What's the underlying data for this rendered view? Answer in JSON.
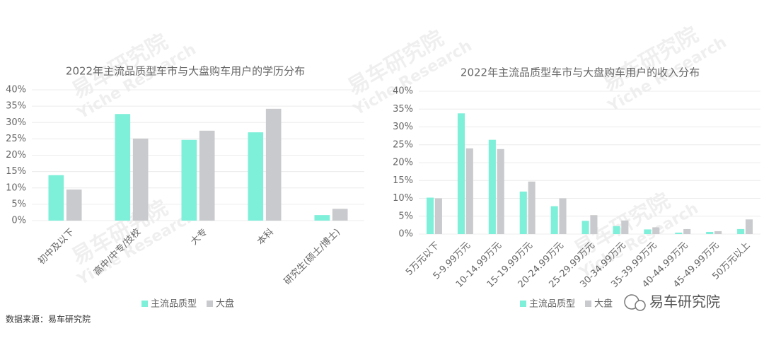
{
  "chart_data": [
    {
      "type": "bar",
      "title": "2022年主流品质型车市与大盘购车用户的学历分布",
      "categories": [
        "初中及以下",
        "高中/中专/技校",
        "大专",
        "本科",
        "研究生(硕士/博士)"
      ],
      "series": [
        {
          "name": "主流品质型",
          "color": "#7eefd9",
          "values": [
            13.9,
            32.6,
            24.7,
            27,
            1.7
          ]
        },
        {
          "name": "大盘",
          "color": "#c9cacd",
          "values": [
            9.5,
            25.1,
            27.5,
            34.2,
            3.6
          ]
        }
      ],
      "ylim": [
        0,
        40
      ],
      "yticks": [
        {
          "value": 0,
          "label": "0%"
        },
        {
          "value": 5,
          "label": "5%"
        },
        {
          "value": 10,
          "label": "10%"
        },
        {
          "value": 15,
          "label": "15%"
        },
        {
          "value": 20,
          "label": "20%"
        },
        {
          "value": 25,
          "label": "25%"
        },
        {
          "value": 30,
          "label": "30%"
        },
        {
          "value": 35,
          "label": "35%"
        },
        {
          "value": 40,
          "label": "40%"
        }
      ],
      "grid": true,
      "legend": "bottom"
    },
    {
      "type": "bar",
      "title": "2022年主流品质型车市与大盘购车用户的收入分布",
      "categories": [
        "5万元以下",
        "5-9.99万元",
        "10-14.99万元",
        "15-19.99万元",
        "20-24.99万元",
        "25-29.99万元",
        "30-34.99万元",
        "35-39.99万元",
        "40-44.99万元",
        "45-49.99万元",
        "50万元以上"
      ],
      "series": [
        {
          "name": "主流品质型",
          "color": "#7eefd9",
          "values": [
            10.2,
            33.8,
            26.4,
            11.9,
            7.8,
            3.7,
            2.2,
            1.3,
            0.4,
            0.6,
            1.4
          ]
        },
        {
          "name": "大盘",
          "color": "#c9cacd",
          "values": [
            10,
            24,
            23.8,
            14.7,
            10,
            5.3,
            3.8,
            1.9,
            1.4,
            0.8,
            4.1
          ]
        }
      ],
      "ylim": [
        0,
        40
      ],
      "yticks": [
        {
          "value": 0,
          "label": "0%"
        },
        {
          "value": 5,
          "label": "5%"
        },
        {
          "value": 10,
          "label": "10%"
        },
        {
          "value": 15,
          "label": "15%"
        },
        {
          "value": 20,
          "label": "20%"
        },
        {
          "value": 25,
          "label": "25%"
        },
        {
          "value": 30,
          "label": "30%"
        },
        {
          "value": 35,
          "label": "35%"
        },
        {
          "value": 40,
          "label": "40%"
        }
      ],
      "grid": true,
      "legend": "bottom"
    }
  ],
  "source": "数据来源：易车研究院",
  "watermark": "易车研究院",
  "watermark_en": "Yiche Research",
  "brand": "易车研究院"
}
